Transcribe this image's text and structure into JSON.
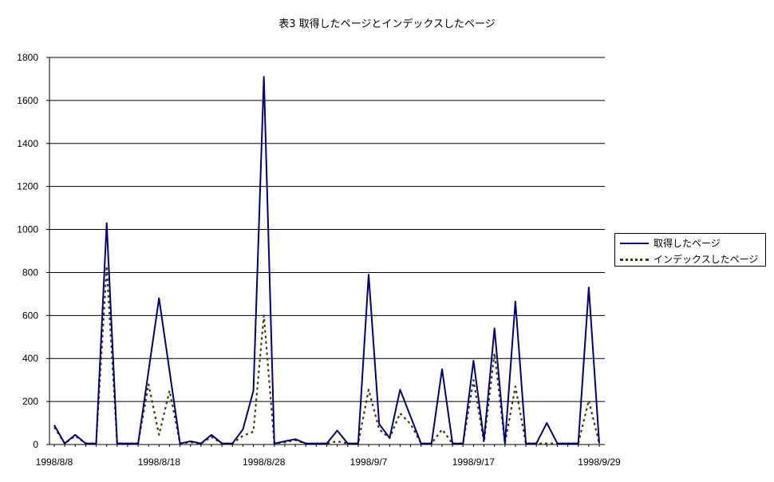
{
  "chart_data": {
    "type": "line",
    "title": "表3 取得したページとインデックスしたページ",
    "ylim": [
      0,
      1800
    ],
    "yticks": [
      "0",
      "200",
      "400",
      "600",
      "800",
      "1000",
      "1200",
      "1400",
      "1600",
      "1800"
    ],
    "grid": true,
    "legend_position": "right",
    "x_tick_labels": [
      {
        "label": "1998/8/8",
        "index": 0
      },
      {
        "label": "1998/8/18",
        "index": 10
      },
      {
        "label": "1998/8/28",
        "index": 20
      },
      {
        "label": "1998/9/7",
        "index": 30
      },
      {
        "label": "1998/9/17",
        "index": 40
      },
      {
        "label": "1998/9/29",
        "index": 52
      }
    ],
    "series": [
      {
        "name": "取得したページ",
        "color": "#000080",
        "style": "solid",
        "points": [
          [
            0,
            90
          ],
          [
            1,
            5
          ],
          [
            2,
            45
          ],
          [
            3,
            5
          ],
          [
            4,
            5
          ],
          [
            5,
            1030
          ],
          [
            6,
            5
          ],
          [
            7,
            5
          ],
          [
            8,
            5
          ],
          [
            10,
            680
          ],
          [
            12,
            5
          ],
          [
            13,
            15
          ],
          [
            14,
            5
          ],
          [
            15,
            45
          ],
          [
            16,
            5
          ],
          [
            17,
            5
          ],
          [
            18,
            70
          ],
          [
            19,
            250
          ],
          [
            20,
            1710
          ],
          [
            21,
            5
          ],
          [
            22,
            15
          ],
          [
            23,
            25
          ],
          [
            24,
            5
          ],
          [
            25,
            5
          ],
          [
            26,
            5
          ],
          [
            27,
            65
          ],
          [
            28,
            5
          ],
          [
            29,
            5
          ],
          [
            30,
            790
          ],
          [
            31,
            95
          ],
          [
            32,
            30
          ],
          [
            33,
            255
          ],
          [
            35,
            5
          ],
          [
            36,
            5
          ],
          [
            37,
            350
          ],
          [
            38,
            5
          ],
          [
            39,
            5
          ],
          [
            40,
            390
          ],
          [
            41,
            20
          ],
          [
            42,
            540
          ],
          [
            43,
            5
          ],
          [
            44,
            665
          ],
          [
            45,
            5
          ],
          [
            46,
            5
          ],
          [
            47,
            100
          ],
          [
            48,
            5
          ],
          [
            49,
            5
          ],
          [
            50,
            5
          ],
          [
            51,
            730
          ],
          [
            52,
            5
          ]
        ]
      },
      {
        "name": "インデックスしたページ",
        "color": "#3d3d00",
        "style": "dotted",
        "points": [
          [
            0,
            80
          ],
          [
            1,
            5
          ],
          [
            2,
            40
          ],
          [
            3,
            5
          ],
          [
            4,
            5
          ],
          [
            5,
            830
          ],
          [
            6,
            5
          ],
          [
            7,
            5
          ],
          [
            8,
            5
          ],
          [
            9,
            280
          ],
          [
            10,
            45
          ],
          [
            11,
            250
          ],
          [
            12,
            5
          ],
          [
            13,
            10
          ],
          [
            14,
            5
          ],
          [
            15,
            35
          ],
          [
            16,
            5
          ],
          [
            17,
            5
          ],
          [
            18,
            40
          ],
          [
            19,
            60
          ],
          [
            20,
            600
          ],
          [
            21,
            5
          ],
          [
            22,
            10
          ],
          [
            23,
            20
          ],
          [
            24,
            5
          ],
          [
            25,
            5
          ],
          [
            26,
            5
          ],
          [
            27,
            15
          ],
          [
            28,
            5
          ],
          [
            29,
            5
          ],
          [
            30,
            255
          ],
          [
            31,
            70
          ],
          [
            32,
            30
          ],
          [
            33,
            145
          ],
          [
            34,
            95
          ],
          [
            35,
            5
          ],
          [
            36,
            5
          ],
          [
            37,
            70
          ],
          [
            38,
            5
          ],
          [
            39,
            5
          ],
          [
            40,
            300
          ],
          [
            41,
            10
          ],
          [
            42,
            425
          ],
          [
            43,
            5
          ],
          [
            44,
            270
          ],
          [
            45,
            5
          ],
          [
            46,
            5
          ],
          [
            47,
            5
          ],
          [
            48,
            5
          ],
          [
            49,
            5
          ],
          [
            50,
            5
          ],
          [
            51,
            205
          ],
          [
            52,
            5
          ]
        ]
      }
    ]
  }
}
